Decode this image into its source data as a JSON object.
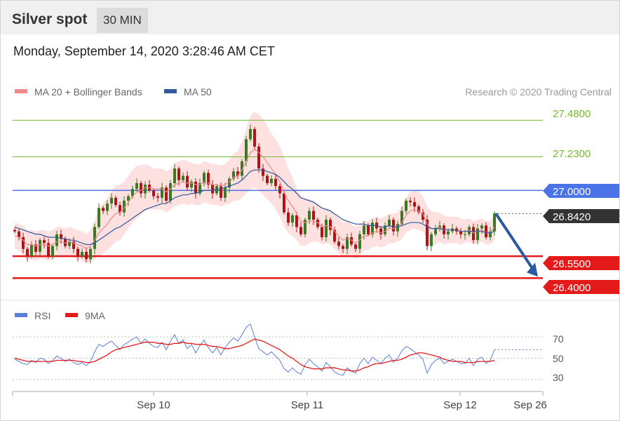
{
  "header": {
    "title": "Silver spot",
    "interval": "30 MIN",
    "timestamp": "Monday, September 14, 2020 3:28:46 AM CET"
  },
  "legend": {
    "ma20_label": "MA 20 + Bollinger Bands",
    "ma50_label": "MA 50",
    "copyright": "Research © 2020 Trading Central",
    "rsi_label": "RSI",
    "rsi_ma_label": "9MA"
  },
  "colors": {
    "resistance": "#74b830",
    "pivot": "#4a73e8",
    "support": "#e41a1a",
    "current": "#333333",
    "ma20": "#f08a8a",
    "ma50": "#2f5aa0",
    "band": "#fde0e0",
    "candle_up": "#3a7a22",
    "candle_down": "#b01515",
    "rsi": "#5a7fd6",
    "rsi_ma": "#e41a1a",
    "arrow": "#2a5aa0"
  },
  "chart_data": [
    {
      "type": "candlestick",
      "ylim": [
        26.33,
        27.53
      ],
      "x_ticks": [
        "Sep 10",
        "Sep 11",
        "Sep 12",
        "Sep 26"
      ],
      "levels": [
        {
          "value": 27.48,
          "label": "27.4800",
          "kind": "resistance"
        },
        {
          "value": 27.23,
          "label": "27.2300",
          "kind": "resistance"
        },
        {
          "value": 27.0,
          "label": "27.0000",
          "kind": "pivot"
        },
        {
          "value": 26.842,
          "label": "26.8420",
          "kind": "current"
        },
        {
          "value": 26.55,
          "label": "26.5500",
          "kind": "support"
        },
        {
          "value": 26.4,
          "label": "26.4000",
          "kind": "support"
        }
      ],
      "forecast": {
        "from": 26.842,
        "to": 26.4,
        "direction": "down"
      },
      "close": [
        26.72,
        26.68,
        26.6,
        26.55,
        26.63,
        26.58,
        26.66,
        26.64,
        26.55,
        26.62,
        26.7,
        26.67,
        26.62,
        26.65,
        26.6,
        26.55,
        26.58,
        26.53,
        26.6,
        26.75,
        26.88,
        26.86,
        26.91,
        26.95,
        26.9,
        26.85,
        26.93,
        26.96,
        27.01,
        27.05,
        26.98,
        27.04,
        27.0,
        26.96,
        26.95,
        27.02,
        26.93,
        27.05,
        27.15,
        27.07,
        27.1,
        27.02,
        27.06,
        26.98,
        27.05,
        27.12,
        27.04,
        26.98,
        27.03,
        26.95,
        27.02,
        27.08,
        27.13,
        27.1,
        27.2,
        27.35,
        27.42,
        27.3,
        27.15,
        27.1,
        27.05,
        27.08,
        27.03,
        26.98,
        26.85,
        26.78,
        26.83,
        26.75,
        26.7,
        26.8,
        26.86,
        26.8,
        26.75,
        26.68,
        26.8,
        26.73,
        26.65,
        26.62,
        26.6,
        26.68,
        26.63,
        26.6,
        26.7,
        26.76,
        26.7,
        26.78,
        26.74,
        26.7,
        26.76,
        26.8,
        26.72,
        26.77,
        26.86,
        26.93,
        26.92,
        26.89,
        26.85,
        26.8,
        26.62,
        26.7,
        26.74,
        26.76,
        26.7,
        26.72,
        26.74,
        26.72,
        26.7,
        26.7,
        26.75,
        26.66,
        26.74,
        26.76,
        26.68,
        26.72,
        26.842
      ],
      "ma20": [
        26.69,
        26.68,
        26.66,
        26.63,
        26.63,
        26.62,
        26.63,
        26.63,
        26.62,
        26.63,
        26.65,
        26.65,
        26.64,
        26.65,
        26.64,
        26.63,
        26.62,
        26.6,
        26.62,
        26.66,
        26.71,
        26.74,
        26.77,
        26.81,
        26.84,
        26.85,
        26.88,
        26.92,
        26.96,
        26.99,
        27.0,
        27.02,
        27.02,
        27.01,
        27.01,
        27.01,
        26.99,
        27.01,
        27.04,
        27.05,
        27.06,
        27.05,
        27.05,
        27.04,
        27.04,
        27.06,
        27.05,
        27.04,
        27.04,
        27.03,
        27.04,
        27.06,
        27.09,
        27.1,
        27.14,
        27.2,
        27.26,
        27.28,
        27.26,
        27.23,
        27.19,
        27.15,
        27.11,
        27.06,
        26.99,
        26.93,
        26.89,
        26.84,
        26.79,
        26.78,
        26.79,
        26.79,
        26.78,
        26.75,
        26.76,
        26.75,
        26.72,
        26.69,
        26.66,
        26.67,
        26.66,
        26.64,
        26.66,
        26.69,
        26.69,
        26.71,
        26.72,
        26.71,
        26.72,
        26.74,
        26.74,
        26.75,
        26.78,
        26.83,
        26.86,
        26.87,
        26.86,
        26.84,
        26.77,
        26.74,
        26.74,
        26.75,
        26.73,
        26.73,
        26.73,
        26.73,
        26.72,
        26.72,
        26.73,
        26.71,
        26.72,
        26.73,
        26.71,
        26.71,
        26.75
      ],
      "ma50": [
        26.75,
        26.74,
        26.73,
        26.72,
        26.71,
        26.7,
        26.7,
        26.69,
        26.68,
        26.68,
        26.68,
        26.67,
        26.67,
        26.66,
        26.66,
        26.65,
        26.64,
        26.63,
        26.63,
        26.64,
        26.66,
        26.68,
        26.7,
        26.72,
        26.74,
        26.75,
        26.77,
        26.79,
        26.81,
        26.83,
        26.85,
        26.87,
        26.88,
        26.89,
        26.9,
        26.91,
        26.91,
        26.93,
        26.95,
        26.96,
        26.97,
        26.97,
        26.98,
        26.98,
        26.99,
        27.0,
        27.0,
        27.0,
        27.01,
        27.01,
        27.02,
        27.03,
        27.04,
        27.05,
        27.07,
        27.1,
        27.13,
        27.14,
        27.14,
        27.14,
        27.13,
        27.12,
        27.11,
        27.09,
        27.06,
        27.03,
        27.01,
        26.98,
        26.95,
        26.94,
        26.93,
        26.92,
        26.9,
        26.88,
        26.87,
        26.86,
        26.84,
        26.82,
        26.8,
        26.79,
        26.78,
        26.77,
        26.77,
        26.77,
        26.76,
        26.76,
        26.76,
        26.75,
        26.75,
        26.76,
        26.75,
        26.75,
        26.76,
        26.77,
        26.78,
        26.78,
        26.78,
        26.77,
        26.75,
        26.74,
        26.74,
        26.74,
        26.73,
        26.73,
        26.73,
        26.73,
        26.72,
        26.72,
        26.72,
        26.72,
        26.72,
        26.72,
        26.71,
        26.71,
        26.72
      ],
      "bb_width": [
        0.09,
        0.09,
        0.1,
        0.1,
        0.1,
        0.1,
        0.1,
        0.1,
        0.1,
        0.1,
        0.1,
        0.1,
        0.1,
        0.1,
        0.1,
        0.1,
        0.1,
        0.1,
        0.11,
        0.13,
        0.16,
        0.17,
        0.18,
        0.19,
        0.19,
        0.19,
        0.18,
        0.18,
        0.18,
        0.18,
        0.17,
        0.16,
        0.15,
        0.14,
        0.14,
        0.14,
        0.14,
        0.14,
        0.15,
        0.15,
        0.15,
        0.15,
        0.14,
        0.14,
        0.14,
        0.14,
        0.14,
        0.14,
        0.14,
        0.14,
        0.14,
        0.15,
        0.16,
        0.17,
        0.19,
        0.22,
        0.25,
        0.26,
        0.26,
        0.26,
        0.25,
        0.24,
        0.24,
        0.24,
        0.24,
        0.22,
        0.2,
        0.18,
        0.17,
        0.16,
        0.15,
        0.14,
        0.13,
        0.12,
        0.12,
        0.12,
        0.12,
        0.12,
        0.12,
        0.12,
        0.11,
        0.11,
        0.11,
        0.1,
        0.1,
        0.1,
        0.1,
        0.1,
        0.1,
        0.1,
        0.1,
        0.1,
        0.11,
        0.12,
        0.13,
        0.13,
        0.13,
        0.12,
        0.12,
        0.12,
        0.11,
        0.1,
        0.1,
        0.09,
        0.09,
        0.09,
        0.09,
        0.08,
        0.08,
        0.08,
        0.08,
        0.08,
        0.08,
        0.08,
        0.09
      ]
    },
    {
      "type": "line",
      "ylim": [
        22,
        78
      ],
      "ticks": [
        70,
        50,
        30
      ],
      "rsi": [
        49,
        47,
        45,
        44,
        48,
        46,
        50,
        49,
        45,
        48,
        52,
        50,
        47,
        49,
        46,
        44,
        46,
        43,
        47,
        56,
        63,
        61,
        64,
        66,
        62,
        58,
        63,
        65,
        68,
        70,
        64,
        68,
        64,
        61,
        60,
        65,
        58,
        66,
        72,
        64,
        67,
        59,
        63,
        55,
        62,
        67,
        60,
        55,
        60,
        53,
        60,
        65,
        69,
        66,
        72,
        79,
        82,
        70,
        59,
        56,
        53,
        56,
        52,
        48,
        40,
        37,
        41,
        37,
        35,
        44,
        49,
        45,
        42,
        38,
        46,
        42,
        37,
        35,
        34,
        41,
        38,
        36,
        45,
        50,
        45,
        51,
        48,
        45,
        50,
        53,
        46,
        50,
        57,
        61,
        59,
        56,
        53,
        49,
        36,
        44,
        48,
        50,
        45,
        47,
        49,
        47,
        45,
        45,
        50,
        43,
        49,
        51,
        45,
        48,
        58
      ],
      "rsi_ma": [
        50,
        49,
        48,
        47,
        47,
        47,
        47,
        47,
        47,
        47,
        48,
        48,
        48,
        48,
        48,
        47,
        47,
        46,
        46,
        47,
        49,
        51,
        53,
        56,
        58,
        59,
        60,
        61,
        62,
        63,
        64,
        65,
        65,
        65,
        64,
        64,
        63,
        63,
        64,
        64,
        65,
        64,
        64,
        63,
        63,
        63,
        62,
        61,
        61,
        60,
        59,
        59,
        60,
        61,
        62,
        64,
        66,
        68,
        67,
        66,
        64,
        62,
        60,
        58,
        55,
        52,
        50,
        47,
        44,
        42,
        41,
        40,
        40,
        40,
        41,
        41,
        41,
        40,
        39,
        39,
        38,
        38,
        39,
        41,
        42,
        44,
        45,
        45,
        46,
        47,
        48,
        48,
        49,
        51,
        53,
        54,
        55,
        55,
        54,
        53,
        52,
        51,
        49,
        48,
        47,
        47,
        47,
        46,
        46,
        46,
        47,
        47,
        47,
        47,
        48
      ]
    }
  ]
}
